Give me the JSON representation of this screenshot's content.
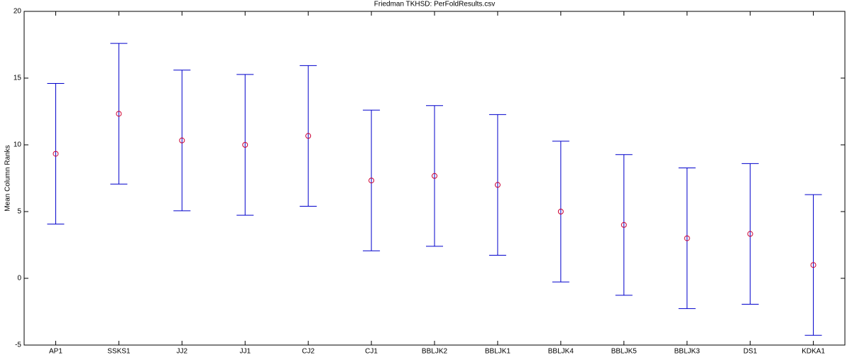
{
  "chart_data": {
    "type": "errorbar",
    "title": "Friedman TKHSD: PerFoldResults.csv",
    "ylabel": "Mean Column Ranks",
    "categories": [
      "AP1",
      "SSKS1",
      "JJ2",
      "JJ1",
      "CJ2",
      "CJ1",
      "BBLJK2",
      "BBLJK1",
      "BBLJK4",
      "BBLJK5",
      "BBLJK3",
      "DS1",
      "KDKA1"
    ],
    "values": [
      9.33,
      12.33,
      10.33,
      10.0,
      10.67,
      7.33,
      7.67,
      7.0,
      5.0,
      4.0,
      3.0,
      3.33,
      1.0
    ],
    "errors": [
      5.27,
      5.27,
      5.27,
      5.27,
      5.27,
      5.27,
      5.27,
      5.27,
      5.27,
      5.27,
      5.27,
      5.27,
      5.27
    ],
    "marker_color": "#cc0033",
    "bar_color": "#0000cc",
    "ylim": [
      -5,
      20
    ],
    "yticks": [
      -5,
      0,
      5,
      10,
      15,
      20
    ]
  }
}
